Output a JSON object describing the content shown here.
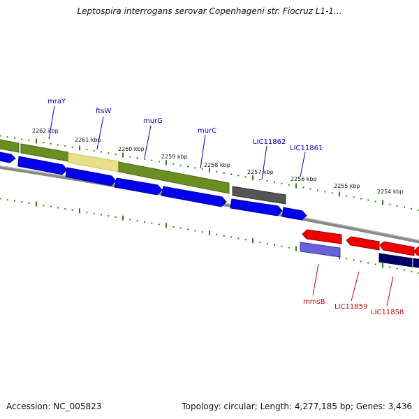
{
  "title": "Leptospira interrogans serovar Copenhageni str. Fiocruz L1-1...",
  "footer": {
    "accession": "Accession: NC_005823",
    "stats": "Topology: circular; Length: 4,277,185 bp; Genes: 3,436"
  },
  "colors": {
    "backbone": "#888888",
    "tick": "#2e7d1a",
    "green_gene": "#6b8e23",
    "yellow_gene": "#e6e08a",
    "gray_gene": "#555555",
    "blue_feature": "#0000ee",
    "red_feature": "#ee0000",
    "navy_feature": "#000066",
    "lavender_feature": "#6a60d8",
    "forward_label": "#0000cc",
    "reverse_label": "#cc0000"
  },
  "scale": {
    "ticks": [
      "2262 kbp",
      "2261 kbp",
      "2260 kbp",
      "2259 kbp",
      "2258 kbp",
      "2257 kbp",
      "2256 kbp",
      "2255 kbp",
      "2254 kbp"
    ]
  },
  "forward_genes": [
    "mraY",
    "ftsW",
    "murG",
    "murC",
    "LIC11862",
    "LIC11861"
  ],
  "reverse_genes": [
    "mmsB",
    "LIC11859",
    "LIC11858"
  ]
}
